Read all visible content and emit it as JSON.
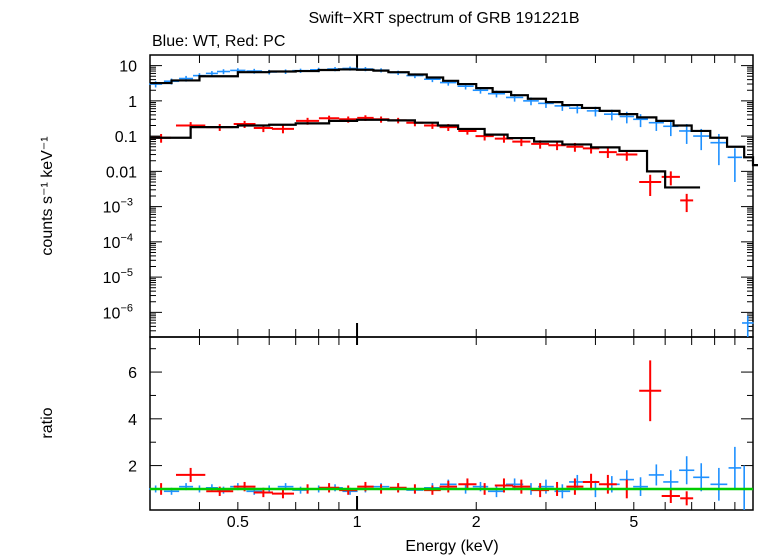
{
  "title": "Swift−XRT spectrum of GRB 191221B",
  "subtitle": "Blue: WT, Red: PC",
  "colors": {
    "wt": "#1e90ff",
    "pc": "#ff0000",
    "model": "#000000",
    "unity": "#00cc00"
  },
  "chart_data": [
    {
      "type": "scatter",
      "title": "Swift−XRT spectrum of GRB 191221B",
      "subtitle": "Blue: WT, Red: PC",
      "xlabel": "Energy (keV)",
      "ylabel": "counts s⁻¹ keV⁻¹",
      "xscale": "log",
      "yscale": "log",
      "xlim": [
        0.3,
        10
      ],
      "ylim": [
        2e-07,
        20
      ],
      "xticks": [
        {
          "v": 0.5,
          "label": "0.5"
        },
        {
          "v": 1,
          "label": "1"
        },
        {
          "v": 2,
          "label": "2"
        },
        {
          "v": 5,
          "label": "5"
        }
      ],
      "yticks": [
        {
          "v": 10,
          "label": "10",
          "sup": ""
        },
        {
          "v": 1,
          "label": "1",
          "sup": ""
        },
        {
          "v": 0.1,
          "label": "0.1",
          "sup": ""
        },
        {
          "v": 0.01,
          "label": "0.01",
          "sup": ""
        },
        {
          "v": 0.001,
          "label": "10",
          "sup": "−3"
        },
        {
          "v": 0.0001,
          "label": "10",
          "sup": "−4"
        },
        {
          "v": 1e-05,
          "label": "10",
          "sup": "−5"
        },
        {
          "v": 1e-06,
          "label": "10",
          "sup": "−6"
        }
      ],
      "series": [
        {
          "name": "WT",
          "color": "#1e90ff",
          "x": [
            0.31,
            0.34,
            0.37,
            0.4,
            0.43,
            0.46,
            0.5,
            0.55,
            0.6,
            0.66,
            0.72,
            0.8,
            0.88,
            0.96,
            1.05,
            1.15,
            1.27,
            1.4,
            1.55,
            1.7,
            1.88,
            2.05,
            2.25,
            2.5,
            2.75,
            3.0,
            3.3,
            3.6,
            4.0,
            4.4,
            4.8,
            5.2,
            5.7,
            6.2,
            6.8,
            7.4,
            8.2,
            9.0,
            9.7
          ],
          "y": [
            3.0,
            3.6,
            4.3,
            5.2,
            6.0,
            6.8,
            7.3,
            7.0,
            6.6,
            6.8,
            7.2,
            7.6,
            8.0,
            8.3,
            8.0,
            7.4,
            6.3,
            5.2,
            4.1,
            3.3,
            2.6,
            2.0,
            1.6,
            1.25,
            1.0,
            0.85,
            0.72,
            0.62,
            0.52,
            0.42,
            0.36,
            0.3,
            0.24,
            0.19,
            0.14,
            0.1,
            0.065,
            0.025,
            5e-07
          ],
          "err": [
            0.6,
            0.7,
            0.8,
            0.9,
            1.0,
            1.1,
            1.1,
            1.1,
            1.0,
            1.0,
            1.0,
            1.1,
            1.1,
            1.1,
            1.1,
            1.0,
            0.9,
            0.8,
            0.7,
            0.6,
            0.5,
            0.4,
            0.35,
            0.3,
            0.25,
            0.22,
            0.2,
            0.18,
            0.16,
            0.14,
            0.13,
            0.12,
            0.1,
            0.09,
            0.08,
            0.06,
            0.05,
            0.02,
            3e-07
          ]
        },
        {
          "name": "PC",
          "color": "#ff0000",
          "x": [
            0.32,
            0.38,
            0.45,
            0.52,
            0.58,
            0.65,
            0.75,
            0.85,
            0.95,
            1.05,
            1.15,
            1.27,
            1.4,
            1.55,
            1.7,
            1.9,
            2.1,
            2.35,
            2.6,
            2.9,
            3.2,
            3.55,
            3.9,
            4.3,
            4.8,
            5.5,
            6.2,
            6.8
          ],
          "y": [
            0.09,
            0.2,
            0.18,
            0.22,
            0.17,
            0.16,
            0.27,
            0.32,
            0.3,
            0.33,
            0.3,
            0.28,
            0.24,
            0.2,
            0.18,
            0.14,
            0.1,
            0.085,
            0.07,
            0.06,
            0.055,
            0.05,
            0.045,
            0.035,
            0.03,
            0.005,
            0.007,
            0.0015
          ],
          "err": [
            0.025,
            0.05,
            0.04,
            0.05,
            0.04,
            0.04,
            0.06,
            0.06,
            0.06,
            0.06,
            0.06,
            0.05,
            0.05,
            0.04,
            0.04,
            0.03,
            0.025,
            0.02,
            0.018,
            0.016,
            0.015,
            0.014,
            0.013,
            0.011,
            0.01,
            0.003,
            0.003,
            0.0008
          ]
        },
        {
          "name": "model",
          "color": "#000000",
          "kind": "step",
          "x": [
            0.3,
            0.34,
            0.4,
            0.5,
            0.6,
            0.7,
            0.8,
            0.9,
            1.0,
            1.1,
            1.2,
            1.35,
            1.5,
            1.65,
            1.8,
            2.0,
            2.2,
            2.45,
            2.7,
            3.0,
            3.3,
            3.7,
            4.1,
            4.6,
            5.1,
            5.7,
            6.3,
            7.0,
            7.8,
            8.6,
            9.5,
            10.0
          ],
          "y": [
            3.2,
            3.8,
            5.0,
            6.5,
            6.8,
            7.0,
            7.5,
            7.8,
            7.6,
            7.2,
            6.5,
            5.6,
            4.6,
            3.7,
            3.0,
            2.3,
            1.8,
            1.45,
            1.15,
            0.92,
            0.76,
            0.63,
            0.52,
            0.42,
            0.34,
            0.27,
            0.2,
            0.14,
            0.09,
            0.05,
            0.025,
            0.015
          ]
        },
        {
          "name": "model-pc",
          "color": "#000000",
          "kind": "step",
          "x": [
            0.3,
            0.38,
            0.5,
            0.6,
            0.7,
            0.85,
            1.0,
            1.2,
            1.4,
            1.6,
            1.8,
            2.1,
            2.4,
            2.8,
            3.3,
            3.9,
            4.6,
            5.4,
            6.0,
            7.0
          ],
          "y": [
            0.09,
            0.18,
            0.2,
            0.21,
            0.23,
            0.27,
            0.29,
            0.28,
            0.24,
            0.2,
            0.16,
            0.11,
            0.088,
            0.07,
            0.058,
            0.048,
            0.038,
            0.01,
            0.0035,
            0.0035
          ]
        }
      ]
    },
    {
      "type": "scatter",
      "xlabel": "Energy (keV)",
      "ylabel": "ratio",
      "xscale": "log",
      "xlim": [
        0.3,
        10
      ],
      "ylim": [
        0.1,
        7.5
      ],
      "yticks": [
        {
          "v": 2,
          "label": "2"
        },
        {
          "v": 4,
          "label": "4"
        },
        {
          "v": 6,
          "label": "6"
        }
      ],
      "series": [
        {
          "name": "WT",
          "color": "#1e90ff",
          "x": [
            0.31,
            0.34,
            0.37,
            0.4,
            0.43,
            0.46,
            0.5,
            0.55,
            0.6,
            0.66,
            0.72,
            0.8,
            0.88,
            0.96,
            1.05,
            1.15,
            1.27,
            1.4,
            1.55,
            1.7,
            1.88,
            2.05,
            2.25,
            2.5,
            2.75,
            3.0,
            3.3,
            3.6,
            4.0,
            4.4,
            4.8,
            5.2,
            5.7,
            6.2,
            6.8,
            7.4,
            8.2,
            9.0,
            9.5
          ],
          "y": [
            1.0,
            0.9,
            1.1,
            1.0,
            1.05,
            0.95,
            1.1,
            0.9,
            1.0,
            1.1,
            0.95,
            1.0,
            1.05,
            0.9,
            1.0,
            1.1,
            1.0,
            0.95,
            1.05,
            1.2,
            1.0,
            1.1,
            0.9,
            1.2,
            1.0,
            1.1,
            0.9,
            1.3,
            1.0,
            1.2,
            1.4,
            1.1,
            1.6,
            1.3,
            1.8,
            1.5,
            1.2,
            1.9,
            1.0
          ],
          "err": [
            0.15,
            0.15,
            0.15,
            0.15,
            0.15,
            0.15,
            0.15,
            0.15,
            0.15,
            0.15,
            0.15,
            0.15,
            0.15,
            0.15,
            0.15,
            0.15,
            0.15,
            0.15,
            0.2,
            0.2,
            0.2,
            0.2,
            0.25,
            0.25,
            0.25,
            0.3,
            0.3,
            0.3,
            0.35,
            0.35,
            0.4,
            0.4,
            0.45,
            0.5,
            0.6,
            0.6,
            0.7,
            0.9,
            1.0
          ]
        },
        {
          "name": "PC",
          "color": "#ff0000",
          "x": [
            0.32,
            0.38,
            0.45,
            0.52,
            0.58,
            0.65,
            0.75,
            0.85,
            0.95,
            1.05,
            1.15,
            1.27,
            1.4,
            1.55,
            1.7,
            1.9,
            2.1,
            2.35,
            2.6,
            2.9,
            3.2,
            3.55,
            3.9,
            4.3,
            4.8,
            5.5,
            6.2,
            6.8
          ],
          "y": [
            1.0,
            1.6,
            0.9,
            1.1,
            0.85,
            0.8,
            1.0,
            1.05,
            0.95,
            1.1,
            1.0,
            1.05,
            1.0,
            0.95,
            1.1,
            1.2,
            1.0,
            1.15,
            1.1,
            0.95,
            1.0,
            1.1,
            1.3,
            1.2,
            1.0,
            5.2,
            0.7,
            0.6
          ],
          "err": [
            0.25,
            0.3,
            0.2,
            0.2,
            0.2,
            0.2,
            0.2,
            0.2,
            0.2,
            0.2,
            0.2,
            0.2,
            0.2,
            0.2,
            0.25,
            0.25,
            0.25,
            0.3,
            0.3,
            0.3,
            0.3,
            0.35,
            0.35,
            0.4,
            0.4,
            1.3,
            0.3,
            0.3
          ]
        },
        {
          "name": "unity",
          "color": "#00cc00",
          "kind": "hline",
          "value": 1.0
        }
      ]
    }
  ]
}
